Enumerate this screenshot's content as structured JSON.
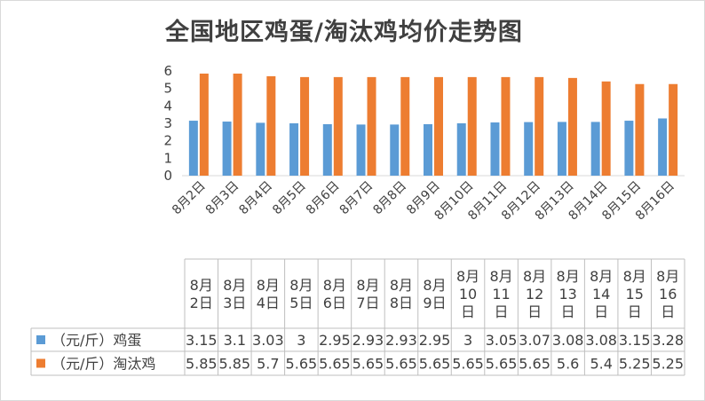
{
  "chart_data": {
    "type": "bar",
    "title": "全国地区鸡蛋/淘汰鸡均价走势图",
    "categories": [
      "8月2日",
      "8月3日",
      "8月4日",
      "8月5日",
      "8月6日",
      "8月7日",
      "8月8日",
      "8月9日",
      "8月10日",
      "8月11日",
      "8月12日",
      "8月13日",
      "8月14日",
      "8月15日",
      "8月16日"
    ],
    "table_headers": [
      [
        "8月",
        "2日"
      ],
      [
        "8月",
        "3日"
      ],
      [
        "8月",
        "4日"
      ],
      [
        "8月",
        "5日"
      ],
      [
        "8月",
        "6日"
      ],
      [
        "8月",
        "7日"
      ],
      [
        "8月",
        "8日"
      ],
      [
        "8月",
        "9日"
      ],
      [
        "8月",
        "10",
        "日"
      ],
      [
        "8月",
        "11",
        "日"
      ],
      [
        "8月",
        "12",
        "日"
      ],
      [
        "8月",
        "13",
        "日"
      ],
      [
        "8月",
        "14",
        "日"
      ],
      [
        "8月",
        "15",
        "日"
      ],
      [
        "8月",
        "16",
        "日"
      ]
    ],
    "series": [
      {
        "name": "（元/斤）鸡蛋",
        "color": "#5b9bd5",
        "values": [
          3.15,
          3.1,
          3.03,
          3,
          2.95,
          2.93,
          2.93,
          2.95,
          3,
          3.05,
          3.07,
          3.08,
          3.08,
          3.15,
          3.28
        ],
        "labels": [
          "3.15",
          "3.1",
          "3.03",
          "3",
          "2.95",
          "2.93",
          "2.93",
          "2.95",
          "3",
          "3.05",
          "3.07",
          "3.08",
          "3.08",
          "3.15",
          "3.28"
        ]
      },
      {
        "name": "（元/斤）淘汰鸡",
        "color": "#ed7d31",
        "values": [
          5.85,
          5.85,
          5.7,
          5.65,
          5.65,
          5.65,
          5.65,
          5.65,
          5.65,
          5.65,
          5.65,
          5.6,
          5.4,
          5.25,
          5.25
        ],
        "labels": [
          "5.85",
          "5.85",
          "5.7",
          "5.65",
          "5.65",
          "5.65",
          "5.65",
          "5.65",
          "5.65",
          "5.65",
          "5.65",
          "5.6",
          "5.4",
          "5.25",
          "5.25"
        ]
      }
    ],
    "y_ticks": [
      "0",
      "1",
      "2",
      "3",
      "4",
      "5",
      "6"
    ],
    "ylim": [
      0,
      6
    ],
    "grid": false,
    "legend": "table"
  }
}
